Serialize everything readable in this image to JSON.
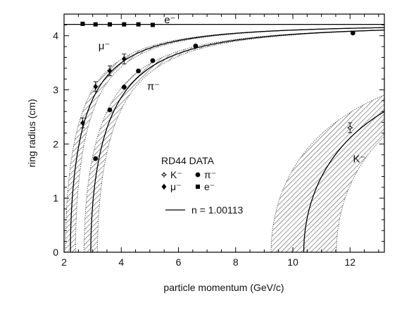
{
  "chart_data": {
    "type": "scatter",
    "title": "",
    "xlabel": "particle momentum (GeV/c)",
    "ylabel": "ring radius (cm)",
    "xlim": [
      2,
      13.2
    ],
    "ylim": [
      0,
      4.4
    ],
    "x_ticks": [
      2,
      4,
      6,
      8,
      10,
      12
    ],
    "y_ticks": [
      0,
      1,
      2,
      3,
      4
    ],
    "grid": false,
    "legend_title": "RD44 DATA",
    "legend_items": [
      {
        "marker": "cross",
        "label": "K⁻"
      },
      {
        "marker": "circle",
        "label": "π⁻"
      },
      {
        "marker": "diamond",
        "label": "μ⁻"
      },
      {
        "marker": "square",
        "label": "e⁻"
      }
    ],
    "model_label": "n = 1.00113",
    "refractive_index": 1.00113,
    "saturation_radius_cm": 4.21,
    "curve_labels": [
      {
        "text": "e⁻",
        "x": 5.5,
        "y": 4.23
      },
      {
        "text": "μ⁻",
        "x": 3.2,
        "y": 3.75
      },
      {
        "text": "π⁻",
        "x": 4.9,
        "y": 3.0
      },
      {
        "text": "K⁻",
        "x": 12.1,
        "y": 1.66
      }
    ],
    "bands": [
      {
        "name": "μ⁻",
        "mass_gev": 0.1057,
        "band_width": 0.16
      },
      {
        "name": "π⁻",
        "mass_gev": 0.1396,
        "band_width": 0.16
      },
      {
        "name": "K⁻",
        "mass_gev": 0.4937,
        "band_width": 0.22
      }
    ],
    "series": [
      {
        "name": "e⁻",
        "marker": "square",
        "x": [
          2.65,
          3.1,
          3.6,
          4.1,
          4.6,
          5.1
        ],
        "y": [
          4.22,
          4.21,
          4.21,
          4.21,
          4.21,
          4.2
        ]
      },
      {
        "name": "μ⁻",
        "marker": "diamond",
        "x": [
          2.65,
          3.1,
          3.6,
          4.1
        ],
        "y": [
          2.39,
          3.06,
          3.35,
          3.57
        ]
      },
      {
        "name": "π⁻",
        "marker": "circle",
        "x": [
          3.1,
          3.6,
          4.1,
          4.6,
          5.1,
          6.6,
          12.1
        ],
        "y": [
          1.73,
          2.63,
          3.05,
          3.35,
          3.54,
          3.81,
          4.05
        ]
      },
      {
        "name": "K⁻",
        "marker": "cross",
        "x": [
          12.0
        ],
        "y": [
          2.3
        ]
      }
    ]
  }
}
